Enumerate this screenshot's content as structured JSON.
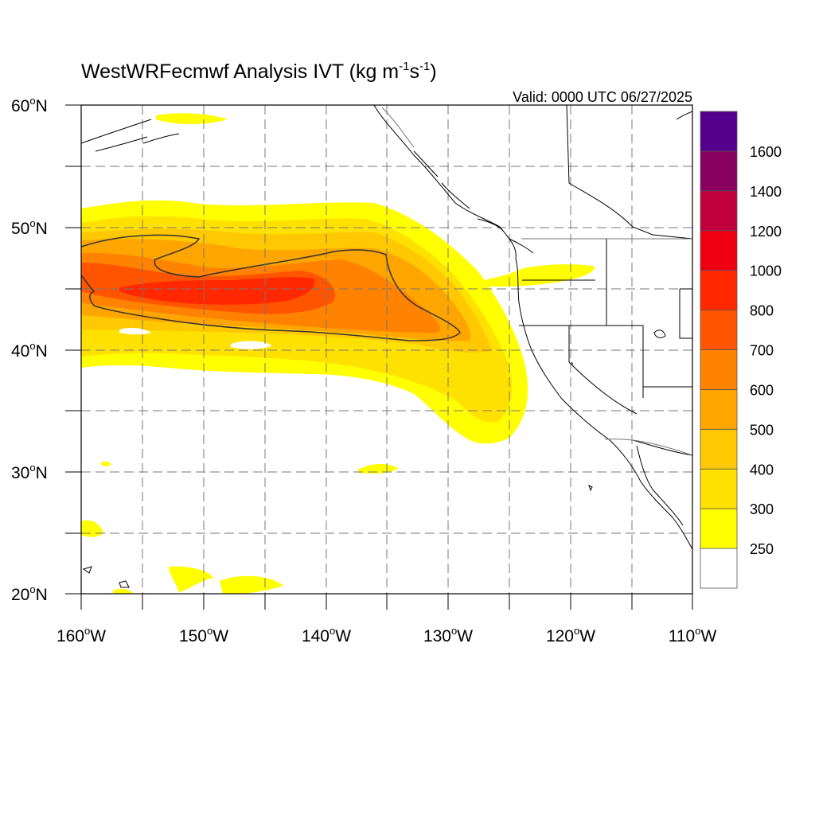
{
  "title": {
    "prefix": "WestWRFecmwf Analysis IVT (kg m",
    "sup1": "-1",
    "mid": "s",
    "sup2": "-1",
    "suffix": ")"
  },
  "valid_label": "Valid: 0000 UTC 06/27/2025",
  "lat_labels": [
    {
      "deg": "60",
      "hemi": "N"
    },
    {
      "deg": "50",
      "hemi": "N"
    },
    {
      "deg": "40",
      "hemi": "N"
    },
    {
      "deg": "30",
      "hemi": "N"
    },
    {
      "deg": "20",
      "hemi": "N"
    }
  ],
  "lon_labels": [
    {
      "deg": "160",
      "hemi": "W"
    },
    {
      "deg": "150",
      "hemi": "W"
    },
    {
      "deg": "140",
      "hemi": "W"
    },
    {
      "deg": "130",
      "hemi": "W"
    },
    {
      "deg": "120",
      "hemi": "W"
    },
    {
      "deg": "110",
      "hemi": "W"
    }
  ],
  "map_extent": {
    "lon": [
      -160,
      -110
    ],
    "lat": [
      20,
      60
    ],
    "grid_step_deg": 5
  },
  "colorbar": {
    "labels": [
      "250",
      "300",
      "400",
      "500",
      "600",
      "700",
      "800",
      "1000",
      "1200",
      "1400",
      "1600"
    ],
    "colors": [
      "#ffffff",
      "#ffff00",
      "#ffe100",
      "#ffc800",
      "#ffa500",
      "#ff8200",
      "#ff5500",
      "#ff2800",
      "#ee0010",
      "#c0003c",
      "#880060",
      "#55008c"
    ]
  },
  "contour_level": "500"
}
